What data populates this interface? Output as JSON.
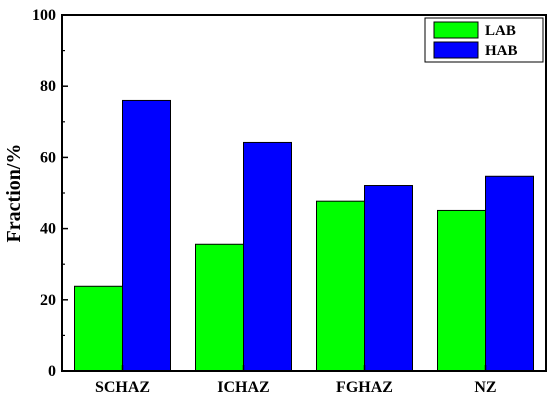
{
  "chart_data": {
    "type": "bar",
    "categories": [
      "SCHAZ",
      "ICHAZ",
      "FGHAZ",
      "NZ"
    ],
    "series": [
      {
        "name": "LAB",
        "values": [
          23.8,
          35.6,
          47.7,
          45.1
        ],
        "color": "#00ff00"
      },
      {
        "name": "HAB",
        "values": [
          76.0,
          64.2,
          52.1,
          54.7
        ],
        "color": "#0000ff"
      }
    ],
    "title": "",
    "xlabel": "",
    "ylabel": "Fraction/%",
    "ylim": [
      0,
      100
    ],
    "yticks": [
      "0",
      "20",
      "40",
      "60",
      "80",
      "100"
    ],
    "legend_position": "top-right",
    "grid": false
  }
}
